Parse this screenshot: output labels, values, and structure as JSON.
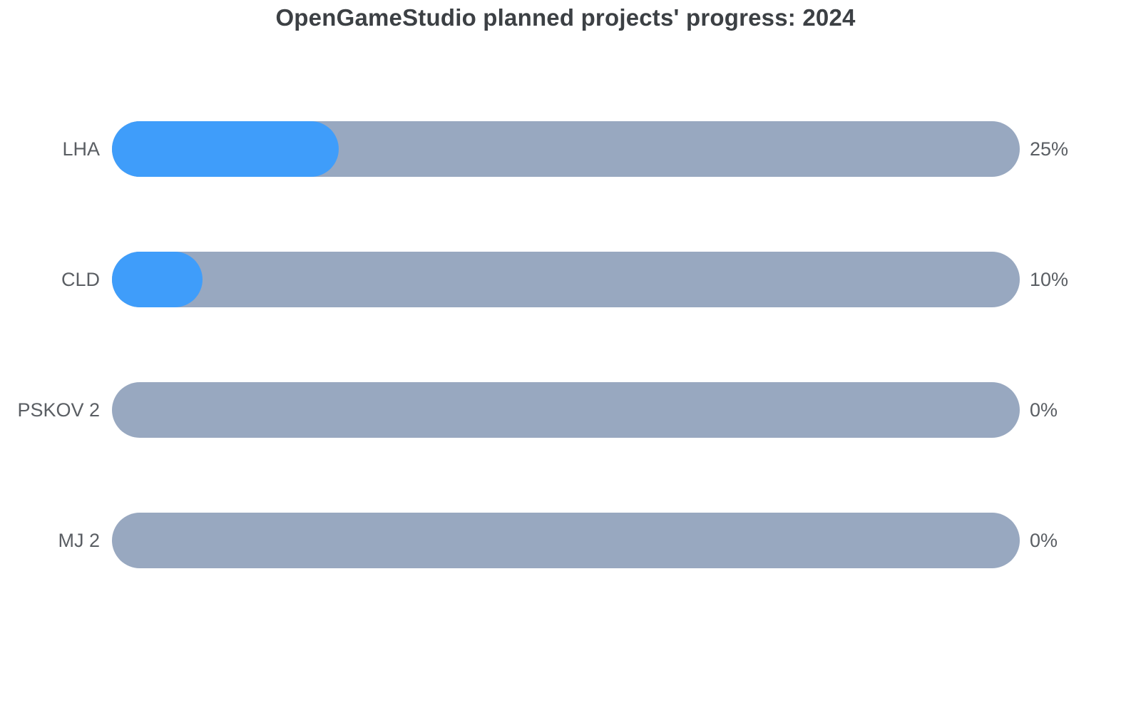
{
  "title": "OpenGameStudio planned projects' progress: 2024",
  "chart_data": {
    "type": "bar",
    "orientation": "horizontal",
    "title": "OpenGameStudio planned projects' progress: 2024",
    "categories": [
      "LHA",
      "CLD",
      "PSKOV 2",
      "MJ 2"
    ],
    "values": [
      25,
      10,
      0,
      0
    ],
    "value_labels": [
      "25%",
      "10%",
      "0%",
      "0%"
    ],
    "value_range": [
      0,
      100
    ],
    "grid": false,
    "legend": false,
    "bar_style": "rounded-pill-progress"
  },
  "colors": {
    "fill": "#3f9dfa",
    "track": "#98a8c0",
    "label": "#5a5e63",
    "title": "#3c4044",
    "background": "#ffffff"
  }
}
